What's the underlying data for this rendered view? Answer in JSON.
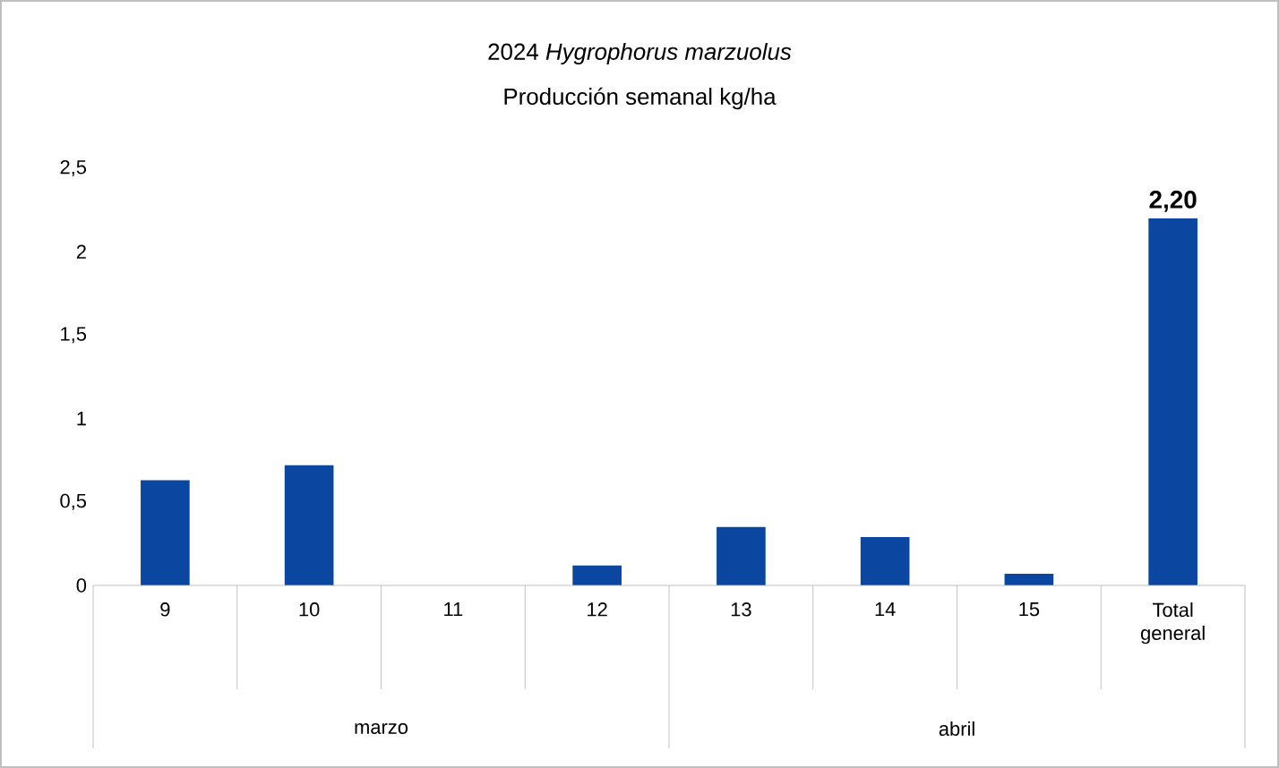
{
  "chart_data": {
    "type": "bar",
    "title": "2024 *Hygrophorus marzuolus*",
    "subtitle": "Producción semanal kg/ha",
    "categories": [
      "9",
      "10",
      "11",
      "12",
      "13",
      "14",
      "15",
      "Total general"
    ],
    "values": [
      0.63,
      0.72,
      0,
      0.12,
      0.35,
      0.29,
      0.07,
      2.2
    ],
    "value_labels": [
      null,
      null,
      null,
      null,
      null,
      null,
      null,
      "2,20"
    ],
    "color": "#0b47a1",
    "ylim": [
      0,
      2.5
    ],
    "yticks": [
      0,
      {
        "value": 0.5,
        "label": "0,5"
      },
      1,
      {
        "value": 1.5,
        "label": "1,5"
      },
      2,
      {
        "value": 2.5,
        "label": "2,5"
      }
    ],
    "annotations": [
      "marzo",
      "abril"
    ]
  }
}
